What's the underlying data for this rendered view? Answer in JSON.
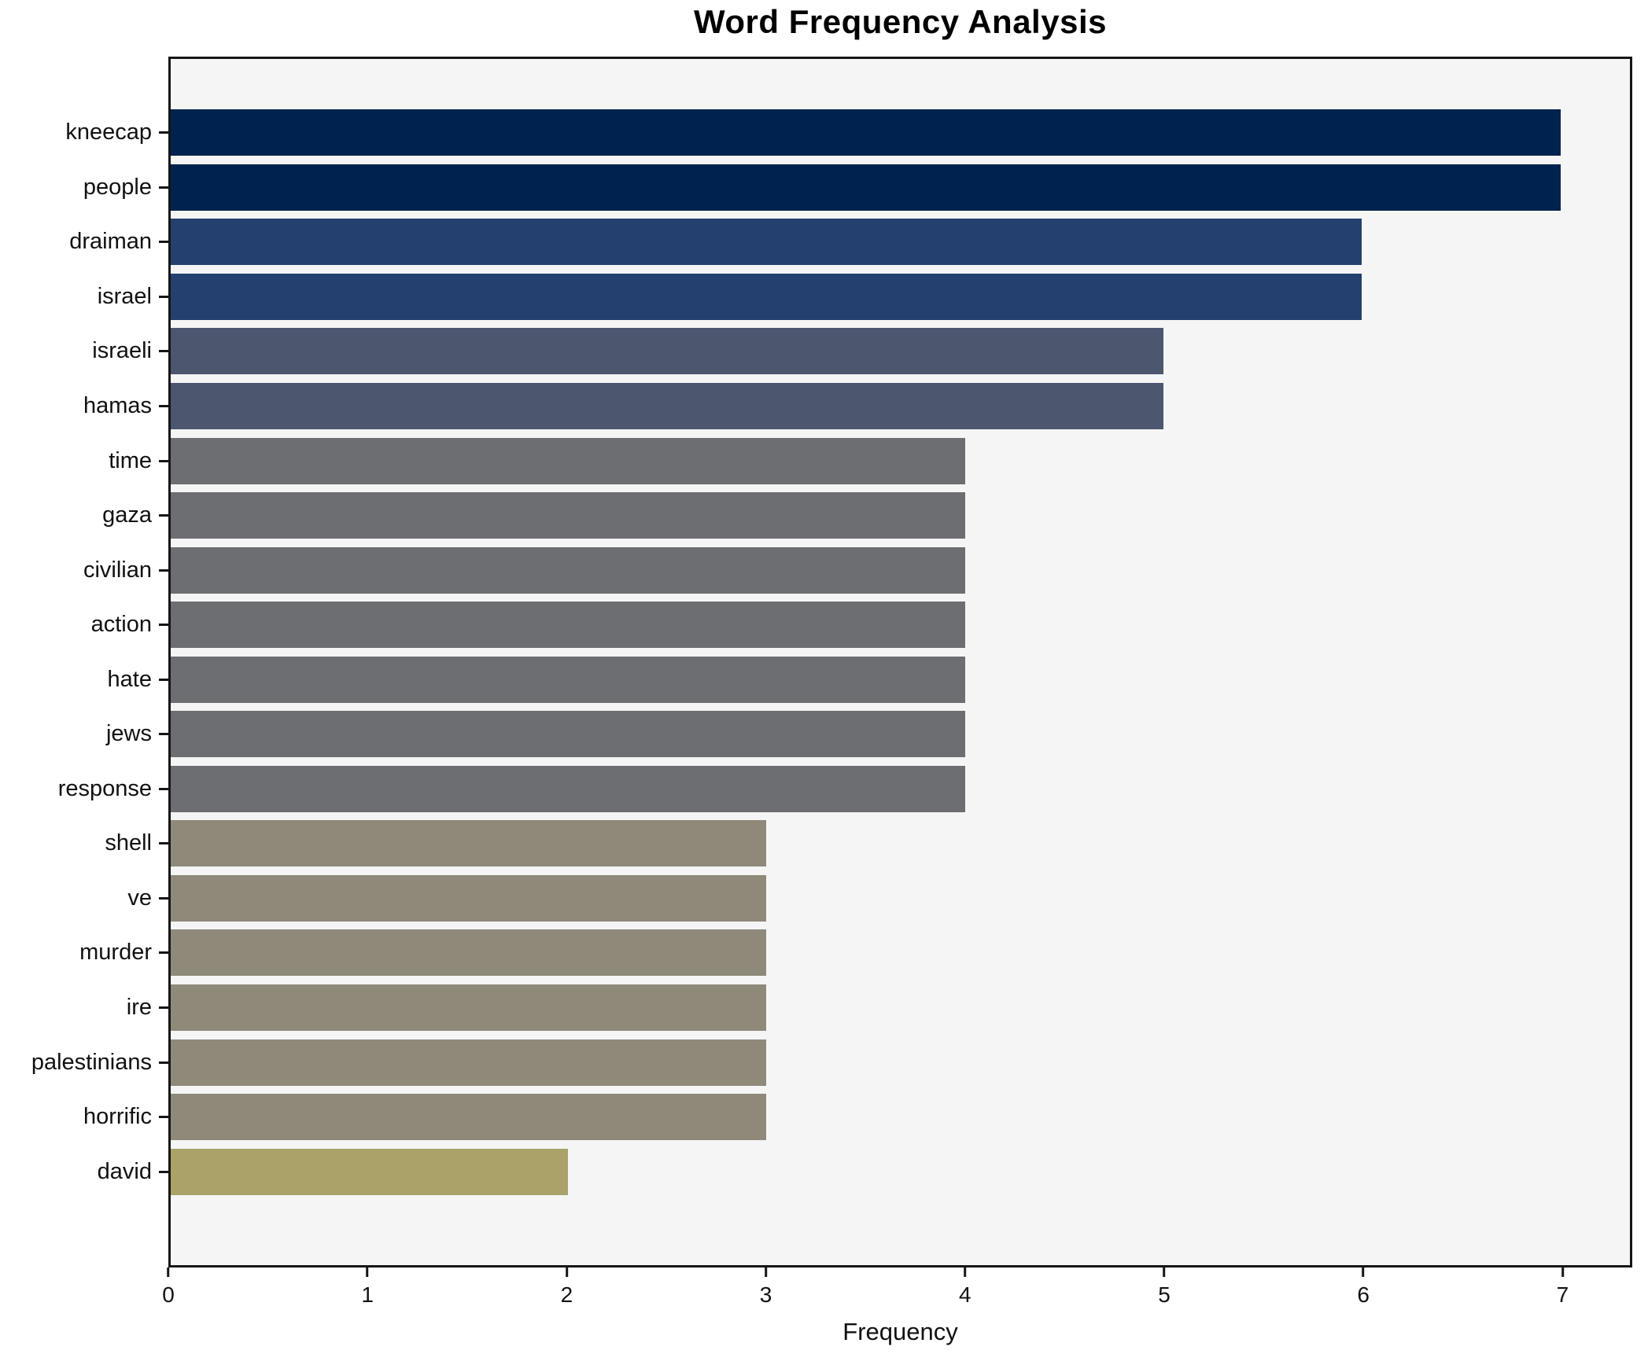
{
  "chart_data": {
    "type": "bar",
    "orientation": "horizontal",
    "title": "Word Frequency Analysis",
    "xlabel": "Frequency",
    "ylabel": "",
    "categories": [
      "kneecap",
      "people",
      "draiman",
      "israel",
      "israeli",
      "hamas",
      "time",
      "gaza",
      "civilian",
      "action",
      "hate",
      "jews",
      "response",
      "shell",
      "ve",
      "murder",
      "ire",
      "palestinians",
      "horrific",
      "david"
    ],
    "values": [
      7,
      7,
      6,
      6,
      5,
      5,
      4,
      4,
      4,
      4,
      4,
      4,
      4,
      3,
      3,
      3,
      3,
      3,
      3,
      2
    ],
    "bar_colors": [
      "#00224e",
      "#00224e",
      "#24406e",
      "#24406e",
      "#4d566f",
      "#4d566f",
      "#6c6e71",
      "#6c6e71",
      "#6c6e71",
      "#6c6e71",
      "#6c6e71",
      "#6c6e71",
      "#6c6e71",
      "#8e8979",
      "#8e8979",
      "#8e8979",
      "#8e8979",
      "#8e8979",
      "#8e8979",
      "#aba26a"
    ],
    "value_colors": {
      "7": "#00224e",
      "6": "#24406e",
      "5": "#4d566f",
      "4": "#6c6e71",
      "3": "#8e8979",
      "2": "#aba26a"
    },
    "xlim": [
      0,
      7.35
    ],
    "xticks": [
      0,
      1,
      2,
      3,
      4,
      5,
      6,
      7
    ],
    "grid": false,
    "legend": false,
    "plot_background": "#f5f5f6",
    "figure_background": "#ffffff",
    "spine_color": "#161616"
  }
}
